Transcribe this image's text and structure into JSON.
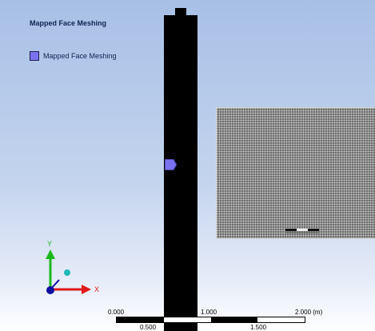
{
  "viewport": {
    "title": "Mapped Face Meshing",
    "legend": {
      "label": "Mapped Face Meshing",
      "swatch_color": "#7a72ee"
    }
  },
  "axes": {
    "y_label": "Y",
    "x_label": "X",
    "y_color": "#1bb81b",
    "x_color": "#e01818",
    "z_color": "#0a0aa0"
  },
  "scale": {
    "top_labels": [
      "0.000",
      "1.000",
      "2.000 (m)"
    ],
    "bottom_labels": [
      "0.500",
      "1.500"
    ]
  }
}
